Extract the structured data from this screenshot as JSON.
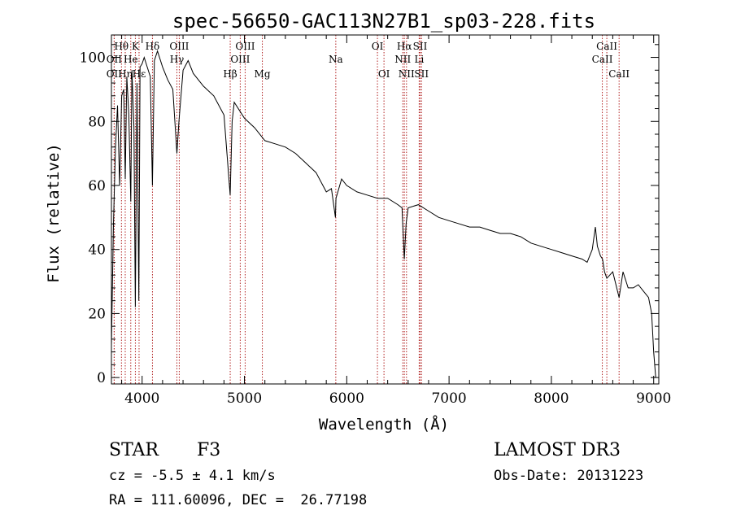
{
  "chart_data": {
    "type": "line",
    "title": "spec-56650-GAC113N27B1_sp03-228.fits",
    "xlabel": "Wavelength (Å)",
    "ylabel": "Flux (relative)",
    "xlim": [
      3700,
      9050
    ],
    "ylim": [
      -2,
      107
    ],
    "x_ticks": [
      4000,
      5000,
      6000,
      7000,
      8000,
      9000
    ],
    "y_ticks": [
      0,
      20,
      40,
      60,
      80,
      100
    ],
    "grid": false,
    "series": [
      {
        "name": "spectrum",
        "x": [
          3700,
          3720,
          3740,
          3760,
          3780,
          3800,
          3820,
          3835,
          3850,
          3870,
          3889,
          3900,
          3920,
          3934,
          3950,
          3968,
          3980,
          4000,
          4020,
          4050,
          4080,
          4101,
          4120,
          4150,
          4200,
          4250,
          4300,
          4340,
          4360,
          4400,
          4450,
          4500,
          4600,
          4700,
          4800,
          4861,
          4880,
          4900,
          5000,
          5100,
          5200,
          5300,
          5400,
          5500,
          5600,
          5700,
          5800,
          5850,
          5889,
          5895,
          5950,
          6000,
          6100,
          6200,
          6300,
          6400,
          6500,
          6540,
          6563,
          6580,
          6600,
          6700,
          6800,
          6900,
          7000,
          7100,
          7200,
          7300,
          7400,
          7500,
          7600,
          7700,
          7800,
          7900,
          8000,
          8100,
          8200,
          8300,
          8350,
          8400,
          8430,
          8450,
          8480,
          8500,
          8520,
          8542,
          8600,
          8662,
          8700,
          8750,
          8800,
          8850,
          8900,
          8950,
          8980,
          9000,
          9020
        ],
        "y": [
          10,
          48,
          72,
          85,
          60,
          88,
          90,
          62,
          94,
          82,
          55,
          96,
          78,
          22,
          92,
          24,
          97,
          98,
          100,
          97,
          94,
          60,
          99,
          102,
          97,
          93,
          90,
          70,
          80,
          96,
          99,
          95,
          91,
          88,
          82,
          57,
          80,
          86,
          81,
          78,
          74,
          73,
          72,
          70,
          67,
          64,
          58,
          59,
          50,
          56,
          62,
          60,
          58,
          57,
          56,
          56,
          54,
          53,
          37,
          48,
          53,
          54,
          52,
          50,
          49,
          48,
          47,
          47,
          46,
          45,
          45,
          44,
          42,
          41,
          40,
          39,
          38,
          37,
          36,
          40,
          47,
          41,
          38,
          37,
          33,
          31,
          33,
          25,
          33,
          28,
          28,
          29,
          27,
          25,
          20,
          8,
          0
        ]
      }
    ],
    "lines": [
      {
        "name": "Hθ",
        "x": 3798,
        "row": 1,
        "align": "center"
      },
      {
        "name": "OII",
        "x": 3727,
        "row": 2,
        "align": "center"
      },
      {
        "name": "OII",
        "x": 3727,
        "row": 3,
        "align": "center"
      },
      {
        "name": "Hη",
        "x": 3835,
        "row": 3,
        "align": "center"
      },
      {
        "name": "He",
        "x": 3889,
        "row": 2,
        "align": "center"
      },
      {
        "name": "K",
        "x": 3934,
        "row": 1,
        "align": "center"
      },
      {
        "name": "Hε",
        "x": 3970,
        "row": 3,
        "align": "center"
      },
      {
        "name": "Hδ",
        "x": 4101,
        "row": 1,
        "align": "center"
      },
      {
        "name": "OIII",
        "x": 4363,
        "row": 1,
        "align": "center"
      },
      {
        "name": "Hγ",
        "x": 4340,
        "row": 2,
        "align": "center"
      },
      {
        "name": "Hβ",
        "x": 4861,
        "row": 3,
        "align": "center"
      },
      {
        "name": "OIII",
        "x": 5007,
        "row": 1,
        "align": "center"
      },
      {
        "name": "OIII",
        "x": 4959,
        "row": 2,
        "align": "center"
      },
      {
        "name": "Mg",
        "x": 5175,
        "row": 3,
        "align": "center"
      },
      {
        "name": "Na",
        "x": 5893,
        "row": 2,
        "align": "center"
      },
      {
        "name": "OI",
        "x": 6300,
        "row": 1,
        "align": "center"
      },
      {
        "name": "OI",
        "x": 6364,
        "row": 3,
        "align": "center"
      },
      {
        "name": "Hα",
        "x": 6563,
        "row": 1,
        "align": "center"
      },
      {
        "name": "NII",
        "x": 6548,
        "row": 2,
        "align": "center"
      },
      {
        "name": "NII",
        "x": 6584,
        "row": 3,
        "align": "center"
      },
      {
        "name": "SII",
        "x": 6717,
        "row": 1,
        "align": "center"
      },
      {
        "name": "Li",
        "x": 6708,
        "row": 2,
        "align": "center"
      },
      {
        "name": "SII",
        "x": 6731,
        "row": 3,
        "align": "center"
      },
      {
        "name": "CaII",
        "x": 8542,
        "row": 1,
        "align": "center"
      },
      {
        "name": "CaII",
        "x": 8498,
        "row": 2,
        "align": "center"
      },
      {
        "name": "CaII",
        "x": 8662,
        "row": 3,
        "align": "center"
      }
    ]
  },
  "info": {
    "object_class": "STAR",
    "subclass": "F3",
    "survey": "LAMOST DR3",
    "redshift": "cz = -5.5 ± 4.1 km/s",
    "obs_date": "Obs-Date: 20131223",
    "coords": "RA = 111.60096, DEC =  26.77198"
  },
  "colors": {
    "axis": "#000000",
    "line": "#000000",
    "marker": "#b22222"
  }
}
